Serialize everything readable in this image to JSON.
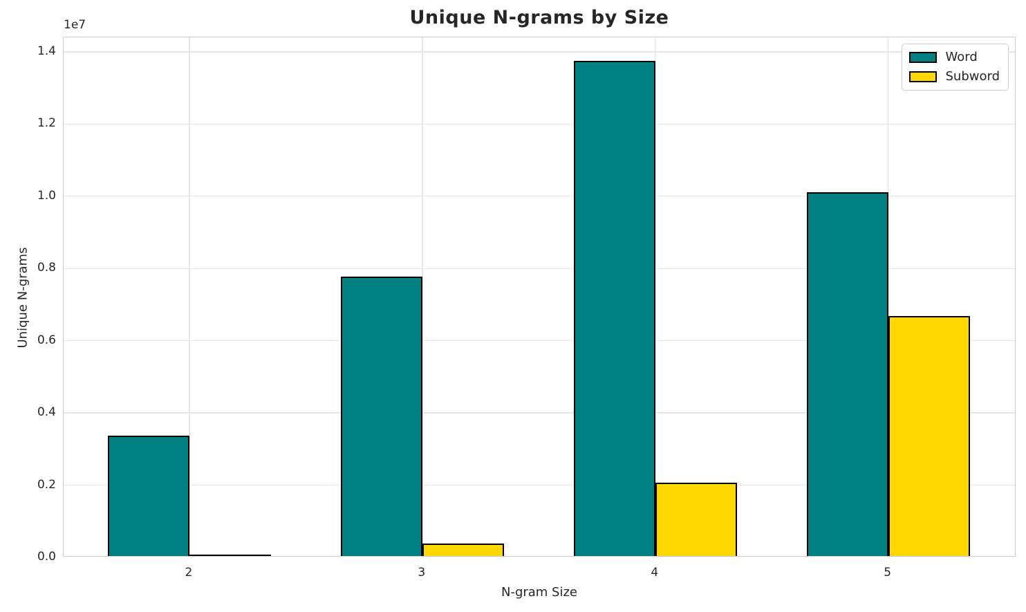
{
  "figure": {
    "title": "Unique N-grams by Size",
    "offset_text": "1e7",
    "xlabel": "N-gram Size",
    "ylabel": "Unique N-grams"
  },
  "legend": {
    "items": [
      {
        "label": "Word",
        "color": "#008080"
      },
      {
        "label": "Subword",
        "color": "#FFD700"
      }
    ]
  },
  "colors": {
    "word_bar": "#008080",
    "subword_bar": "#FFD700",
    "bar_edge": "#000000",
    "grid": "#e6e6e6",
    "spine": "#cccccc",
    "text": "#262626"
  },
  "chart_data": {
    "type": "bar",
    "title": "Unique N-grams by Size",
    "xlabel": "N-gram Size",
    "ylabel": "Unique N-grams",
    "categories": [
      "2",
      "3",
      "4",
      "5"
    ],
    "x_positions": [
      2,
      3,
      4,
      5
    ],
    "series": [
      {
        "name": "Word",
        "color": "#008080",
        "values": [
          3340000,
          7740000,
          13710000,
          10070000
        ]
      },
      {
        "name": "Subword",
        "color": "#FFD700",
        "values": [
          45000,
          350000,
          2030000,
          6650000
        ]
      }
    ],
    "bar_width": 0.35,
    "bar_edge_color": "#000000",
    "xlim": [
      1.46,
      5.55
    ],
    "ylim": [
      0,
      14400000
    ],
    "yticks": [
      0,
      2000000,
      4000000,
      6000000,
      8000000,
      10000000,
      12000000,
      14000000
    ],
    "ytick_labels": [
      "0.0",
      "0.2",
      "0.4",
      "0.6",
      "0.8",
      "1.0",
      "1.2",
      "1.4"
    ],
    "y_offset_factor": "1e7",
    "grid": true,
    "grid_axes": "both",
    "legend_position": "upper right"
  }
}
